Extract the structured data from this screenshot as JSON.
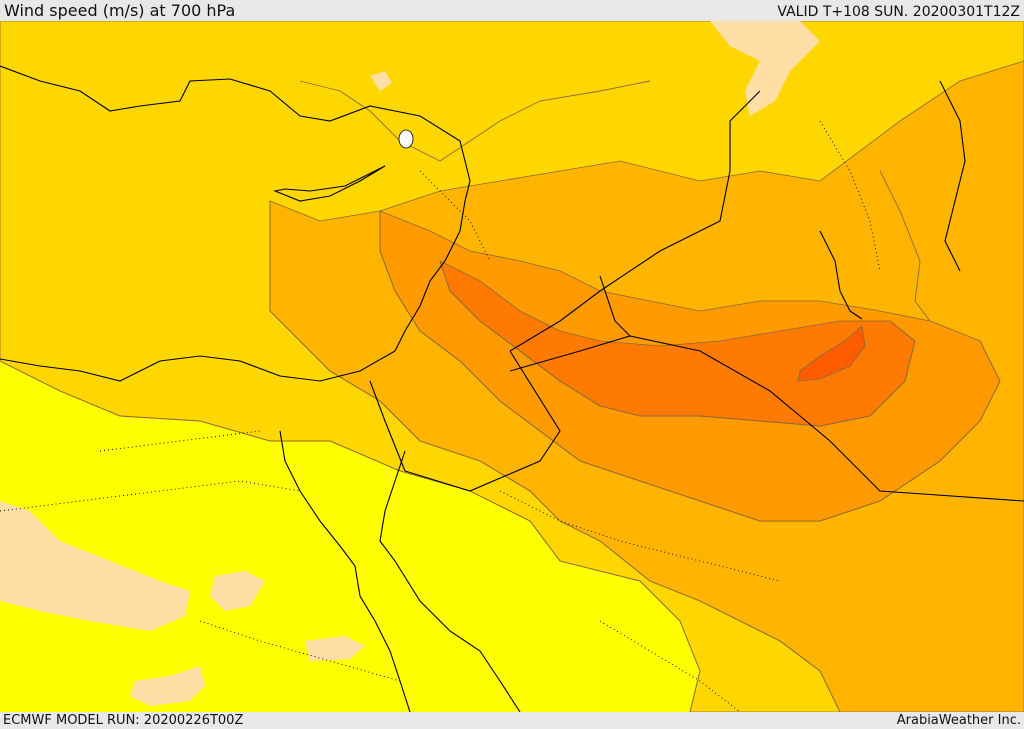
{
  "header": {
    "title": "Wind speed (m/s) at 700 hPa",
    "valid_time": "VALID T+108 SUN. 20200301T12Z"
  },
  "footer": {
    "model_run": "ECMWF MODEL RUN: 20200226T00Z",
    "credit": "ArabiaWeather Inc."
  },
  "map": {
    "field": "wind speed at 700 hPa",
    "colors": {
      "calm_peach": "#ffdfa6",
      "band_yellow": "#ffff00",
      "band_gold": "#ffd700",
      "band_orange_light": "#ffb400",
      "band_orange": "#ff9a00",
      "band_orange_dark": "#ff7a00",
      "band_red_orange": "#ff5c00",
      "contour_line": "#8a6a3a",
      "coastline": "#000000"
    }
  }
}
